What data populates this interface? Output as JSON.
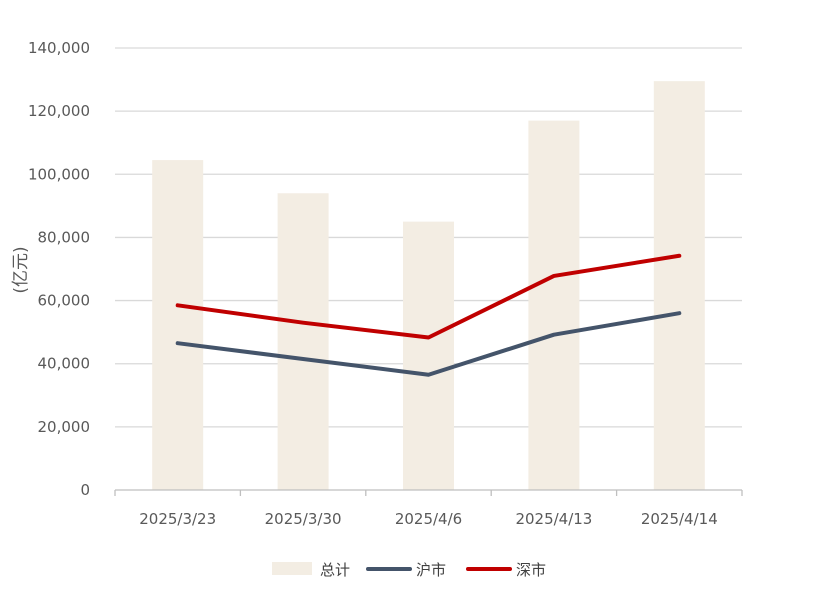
{
  "chart_data": {
    "type": "bar",
    "title": "",
    "xlabel": "",
    "ylabel": "(亿元)",
    "ylim": [
      0,
      140000
    ],
    "yticks": [
      "0",
      "20,000",
      "40,000",
      "60,000",
      "80,000",
      "100,000",
      "120,000",
      "140,000"
    ],
    "categories": [
      "2025/3/23",
      "2025/3/30",
      "2025/4/6",
      "2025/4/13",
      "2025/4/14"
    ],
    "grid": true,
    "legend_position": "bottom",
    "series": [
      {
        "name": "总计",
        "kind": "bar",
        "color": "#F3EDE3",
        "values": [
          104500,
          94000,
          85000,
          117000,
          129500
        ]
      },
      {
        "name": "沪市",
        "kind": "line",
        "color": "#44546A",
        "values": [
          46500,
          41500,
          36500,
          49200,
          56000
        ]
      },
      {
        "name": "深市",
        "kind": "line",
        "color": "#C00000",
        "values": [
          58500,
          53000,
          48300,
          67800,
          74200
        ]
      }
    ]
  }
}
